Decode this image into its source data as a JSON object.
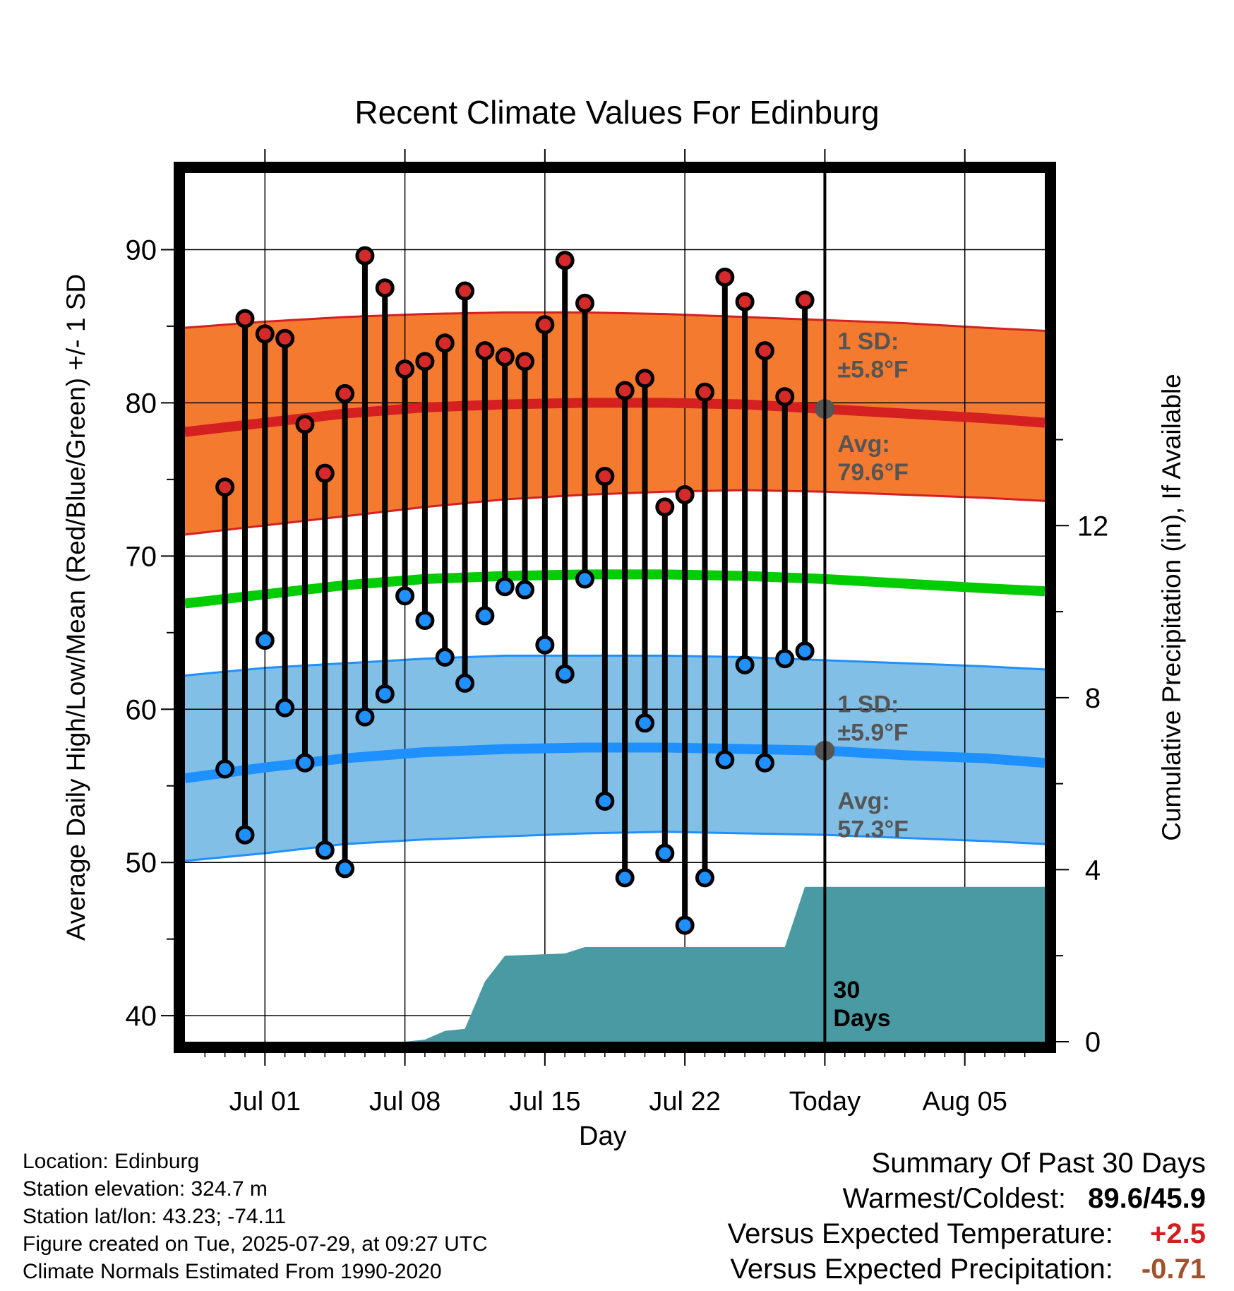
{
  "title": "Recent Climate Values For Edinburg",
  "chart_data": {
    "type": "line",
    "title": "Recent Climate Values For Edinburg",
    "xlabel": "Day",
    "ylabel_left": "Average Daily High/Low/Mean (Red/Blue/Green) +/- 1 SD",
    "ylabel_right": "Cumulative Precipitation (in), If Available",
    "xlim": [
      "2025-06-27",
      "2025-08-09"
    ],
    "ylim_left": [
      38.3,
      95
    ],
    "ylim_right": [
      0,
      20.2
    ],
    "x_ticks": [
      "2025-07-01",
      "2025-07-08",
      "2025-07-15",
      "2025-07-22",
      "2025-07-29",
      "2025-08-05"
    ],
    "x_tick_labels": [
      "Jul 01",
      "Jul 08",
      "Jul 15",
      "Jul 22",
      "Today",
      "Aug 05"
    ],
    "y_ticks_left": [
      40,
      50,
      60,
      70,
      80,
      90
    ],
    "y_ticks_right": [
      0,
      4,
      8,
      12
    ],
    "grid": true,
    "today": "2025-07-29",
    "today_label": "30 Days",
    "observed": {
      "dates": [
        "2025-06-29",
        "2025-06-30",
        "2025-07-01",
        "2025-07-02",
        "2025-07-03",
        "2025-07-04",
        "2025-07-05",
        "2025-07-06",
        "2025-07-07",
        "2025-07-08",
        "2025-07-09",
        "2025-07-10",
        "2025-07-11",
        "2025-07-12",
        "2025-07-13",
        "2025-07-14",
        "2025-07-15",
        "2025-07-16",
        "2025-07-17",
        "2025-07-18",
        "2025-07-19",
        "2025-07-20",
        "2025-07-21",
        "2025-07-22",
        "2025-07-23",
        "2025-07-24",
        "2025-07-25",
        "2025-07-26",
        "2025-07-27",
        "2025-07-28"
      ],
      "high": [
        74.5,
        85.5,
        84.5,
        84.2,
        78.6,
        75.4,
        80.6,
        89.6,
        87.5,
        82.2,
        82.7,
        83.9,
        87.3,
        83.4,
        83.0,
        82.7,
        85.1,
        89.3,
        86.5,
        75.2,
        80.8,
        81.6,
        73.2,
        74.0,
        80.7,
        88.2,
        86.6,
        83.4,
        80.4,
        86.7
      ],
      "low": [
        56.1,
        51.8,
        64.5,
        60.1,
        56.5,
        50.8,
        49.6,
        59.5,
        61.0,
        67.4,
        65.8,
        63.4,
        61.7,
        66.1,
        68.0,
        67.8,
        64.2,
        62.3,
        68.5,
        54.0,
        49.0,
        59.1,
        50.6,
        45.9,
        49.0,
        56.7,
        62.9,
        56.5,
        63.3,
        63.8
      ]
    },
    "normals": {
      "dates": [
        "2025-06-27",
        "2025-07-01",
        "2025-07-05",
        "2025-07-09",
        "2025-07-13",
        "2025-07-17",
        "2025-07-21",
        "2025-07-25",
        "2025-07-29",
        "2025-08-02",
        "2025-08-06",
        "2025-08-09"
      ],
      "high_avg": [
        78.1,
        78.7,
        79.3,
        79.7,
        79.9,
        80.0,
        80.0,
        79.9,
        79.6,
        79.3,
        79.0,
        78.7
      ],
      "high_upper": [
        84.9,
        85.3,
        85.6,
        85.8,
        85.9,
        85.9,
        85.8,
        85.6,
        85.4,
        85.2,
        84.9,
        84.7
      ],
      "high_lower": [
        71.4,
        72.0,
        72.6,
        73.2,
        73.7,
        74.0,
        74.2,
        74.3,
        74.2,
        74.0,
        73.8,
        73.6
      ],
      "mean_avg": [
        66.9,
        67.5,
        68.1,
        68.5,
        68.7,
        68.8,
        68.8,
        68.7,
        68.5,
        68.2,
        67.9,
        67.7
      ],
      "low_avg": [
        55.5,
        56.2,
        56.8,
        57.2,
        57.4,
        57.5,
        57.5,
        57.4,
        57.3,
        57.0,
        56.8,
        56.5
      ],
      "low_upper": [
        62.2,
        62.7,
        63.0,
        63.3,
        63.5,
        63.5,
        63.5,
        63.4,
        63.2,
        63.0,
        62.8,
        62.6
      ],
      "low_lower": [
        50.1,
        50.6,
        51.2,
        51.5,
        51.7,
        51.9,
        52.0,
        51.9,
        51.8,
        51.6,
        51.4,
        51.2
      ]
    },
    "precip": {
      "dates": [
        "2025-07-08",
        "2025-07-09",
        "2025-07-10",
        "2025-07-11",
        "2025-07-12",
        "2025-07-13",
        "2025-07-16",
        "2025-07-17",
        "2025-07-27",
        "2025-07-28",
        "2025-08-09"
      ],
      "cumulative": [
        0.0,
        0.05,
        0.25,
        0.3,
        1.4,
        2.0,
        2.05,
        2.2,
        2.2,
        3.6,
        3.6
      ]
    },
    "annotations": [
      {
        "label": "1 SD:",
        "value": "±5.8°F",
        "series": "high"
      },
      {
        "label": "Avg:",
        "value": "79.6°F",
        "series": "high"
      },
      {
        "label": "1 SD:",
        "value": "±5.9°F",
        "series": "low"
      },
      {
        "label": "Avg:",
        "value": "57.3°F",
        "series": "low"
      }
    ],
    "colors": {
      "high_band": "#f47a30",
      "high_avg": "#d42020",
      "high_dot": "#d62a2a",
      "mean_line": "#00cc00",
      "low_band": "#82bfe7",
      "low_avg": "#1e90ff",
      "low_dot": "#1e90ff",
      "precip": "#4a9aa3",
      "annotation": "#555555"
    }
  },
  "station": {
    "location": "Location: Edinburg",
    "elevation": "Station elevation: 324.7 m",
    "latlon": "Station lat/lon: 43.23; -74.11",
    "created": "Figure created on Tue, 2025-07-29, at 09:27 UTC",
    "normals_period": "Climate Normals Estimated From 1990-2020"
  },
  "summary": {
    "heading": "Summary Of Past 30 Days",
    "warmest_coldest_label": "Warmest/Coldest:",
    "warmest_coldest_value": "89.6/45.9",
    "temp_label": "Versus Expected Temperature:",
    "temp_value": "+2.5",
    "precip_label": "Versus Expected Precipitation:",
    "precip_value": "-0.71"
  }
}
